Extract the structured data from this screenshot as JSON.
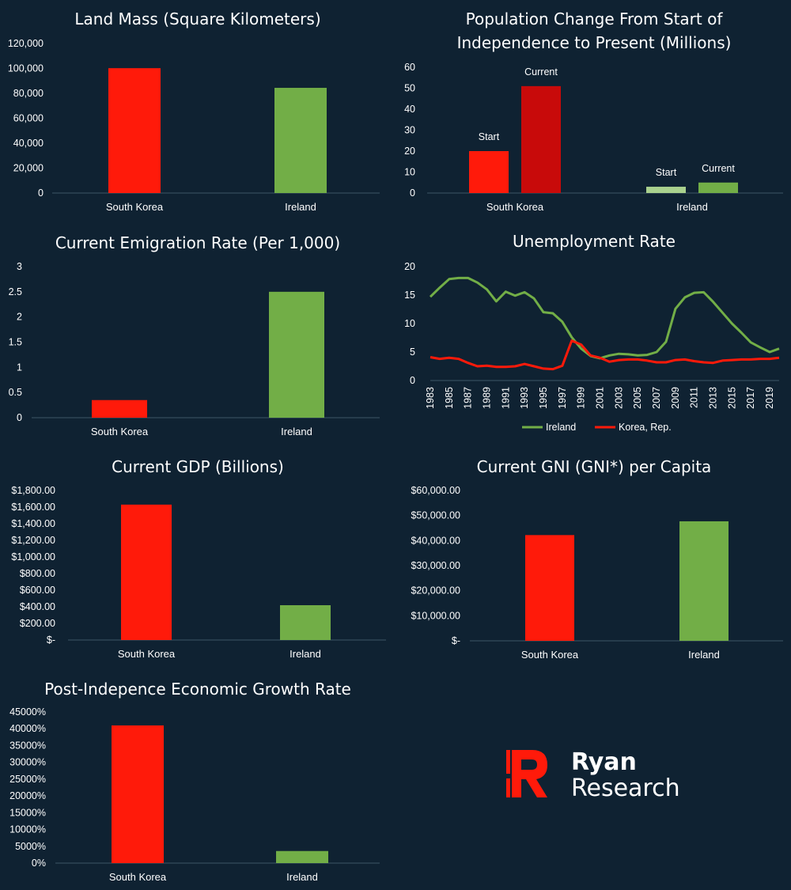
{
  "colors": {
    "background": "#0f2232",
    "korea": "#ff1a0a",
    "korea_dark": "#c80a0a",
    "ireland": "#72ae47",
    "ireland_light": "#a9d18e",
    "text": "#ffffff"
  },
  "brand": {
    "name": "Ryan",
    "sub": "Research",
    "icon": "ryan-research-r-logo-icon"
  },
  "chart_data": [
    {
      "id": "land",
      "type": "bar",
      "title": "Land Mass (Square Kilometers)",
      "categories": [
        "South Korea",
        "Ireland"
      ],
      "values": [
        100210,
        84421
      ],
      "colors": [
        "#ff1a0a",
        "#72ae47"
      ],
      "ylim": [
        0,
        120000
      ],
      "yticks": [
        0,
        20000,
        40000,
        60000,
        80000,
        100000,
        120000
      ],
      "ytick_labels": [
        "0",
        "20,000",
        "40,000",
        "60,000",
        "80,000",
        "100,000",
        "120,000"
      ],
      "grid": false
    },
    {
      "id": "pop",
      "type": "bar",
      "title_lines": [
        "Population Change From Start of",
        "Independence to Present (Millions)"
      ],
      "categories": [
        "South Korea",
        "Ireland"
      ],
      "series": [
        {
          "name": "Start",
          "values": [
            20,
            3
          ],
          "colors": [
            "#ff1a0a",
            "#a9d18e"
          ]
        },
        {
          "name": "Current",
          "values": [
            51,
            5
          ],
          "colors": [
            "#c80a0a",
            "#72ae47"
          ]
        }
      ],
      "ylim": [
        0,
        60
      ],
      "yticks": [
        0,
        10,
        20,
        30,
        40,
        50,
        60
      ],
      "ytick_labels": [
        "0",
        "10",
        "20",
        "30",
        "40",
        "50",
        "60"
      ],
      "grid": false
    },
    {
      "id": "emig",
      "type": "bar",
      "title": "Current Emigration Rate (Per 1,000)",
      "categories": [
        "South Korea",
        "Ireland"
      ],
      "values": [
        0.35,
        2.5
      ],
      "colors": [
        "#ff1a0a",
        "#72ae47"
      ],
      "ylim": [
        0,
        3
      ],
      "yticks": [
        0,
        0.5,
        1,
        1.5,
        2,
        2.5,
        3
      ],
      "ytick_labels": [
        "0",
        "0.5",
        "1",
        "1.5",
        "2",
        "2.5",
        "3"
      ],
      "grid": false
    },
    {
      "id": "unemp",
      "type": "line",
      "title": "Unemployment Rate",
      "x": [
        1983,
        1984,
        1985,
        1986,
        1987,
        1988,
        1989,
        1990,
        1991,
        1992,
        1993,
        1994,
        1995,
        1996,
        1997,
        1998,
        1999,
        2000,
        2001,
        2002,
        2003,
        2004,
        2005,
        2006,
        2007,
        2008,
        2009,
        2010,
        2011,
        2012,
        2013,
        2014,
        2015,
        2016,
        2017,
        2018,
        2019,
        2020
      ],
      "xtick_labels": [
        "1983",
        "1985",
        "1987",
        "1989",
        "1991",
        "1993",
        "1995",
        "1997",
        "1999",
        "2001",
        "2003",
        "2005",
        "2007",
        "2009",
        "2011",
        "2013",
        "2015",
        "2017",
        "2019"
      ],
      "series": [
        {
          "name": "Ireland",
          "color": "#72ae47",
          "values": [
            14.7,
            16.3,
            17.8,
            18.0,
            18.0,
            17.2,
            16.0,
            13.9,
            15.6,
            14.9,
            15.5,
            14.4,
            12.0,
            11.8,
            10.3,
            7.6,
            5.6,
            4.3,
            3.9,
            4.4,
            4.7,
            4.6,
            4.4,
            4.5,
            5.0,
            6.8,
            12.6,
            14.6,
            15.4,
            15.5,
            13.8,
            11.9,
            10.0,
            8.4,
            6.7,
            5.8,
            5.0,
            5.6
          ]
        },
        {
          "name": "Korea, Rep.",
          "color": "#ff1a0a",
          "values": [
            4.1,
            3.8,
            4.0,
            3.8,
            3.1,
            2.5,
            2.6,
            2.4,
            2.4,
            2.5,
            2.9,
            2.5,
            2.1,
            2.0,
            2.6,
            7.0,
            6.3,
            4.4,
            4.0,
            3.3,
            3.6,
            3.7,
            3.7,
            3.5,
            3.2,
            3.2,
            3.6,
            3.7,
            3.4,
            3.2,
            3.1,
            3.5,
            3.6,
            3.7,
            3.7,
            3.8,
            3.8,
            4.0
          ]
        }
      ],
      "ylim": [
        0,
        20
      ],
      "yticks": [
        0,
        5,
        10,
        15,
        20
      ],
      "ytick_labels": [
        "0",
        "5",
        "10",
        "15",
        "20"
      ],
      "legend": "bottom",
      "grid": false
    },
    {
      "id": "gdp",
      "type": "bar",
      "title": "Current GDP (Billions)",
      "categories": [
        "South Korea",
        "Ireland"
      ],
      "values": [
        1630,
        419
      ],
      "colors": [
        "#ff1a0a",
        "#72ae47"
      ],
      "ylim": [
        0,
        1800
      ],
      "yticks": [
        0,
        200,
        400,
        600,
        800,
        1000,
        1200,
        1400,
        1600,
        1800
      ],
      "ytick_labels": [
        "$-",
        "$200.00",
        "$400.00",
        "$600.00",
        "$800.00",
        "$1,000.00",
        "$1,200.00",
        "$1,400.00",
        "$1,600.00",
        "$1,800.00"
      ],
      "grid": false
    },
    {
      "id": "gni",
      "type": "bar",
      "title": "Current GNI (GNI*) per Capita",
      "categories": [
        "South Korea",
        "Ireland"
      ],
      "values": [
        42200,
        47700
      ],
      "colors": [
        "#ff1a0a",
        "#72ae47"
      ],
      "ylim": [
        0,
        60000
      ],
      "yticks": [
        0,
        10000,
        20000,
        30000,
        40000,
        50000,
        60000
      ],
      "ytick_labels": [
        "$-",
        "$10,000.00",
        "$20,000.00",
        "$30,000.00",
        "$40,000.00",
        "$50,000.00",
        "$60,000.00"
      ],
      "grid": false
    },
    {
      "id": "growth",
      "type": "bar",
      "title": "Post-Indepence Economic Growth Rate",
      "categories": [
        "South Korea",
        "Ireland"
      ],
      "values": [
        41000,
        3600
      ],
      "colors": [
        "#ff1a0a",
        "#72ae47"
      ],
      "ylim": [
        0,
        45000
      ],
      "yticks": [
        0,
        5000,
        10000,
        15000,
        20000,
        25000,
        30000,
        35000,
        40000,
        45000
      ],
      "ytick_labels": [
        "0%",
        "5000%",
        "10000%",
        "15000%",
        "20000%",
        "25000%",
        "30000%",
        "35000%",
        "40000%",
        "45000%"
      ],
      "grid": false
    }
  ]
}
